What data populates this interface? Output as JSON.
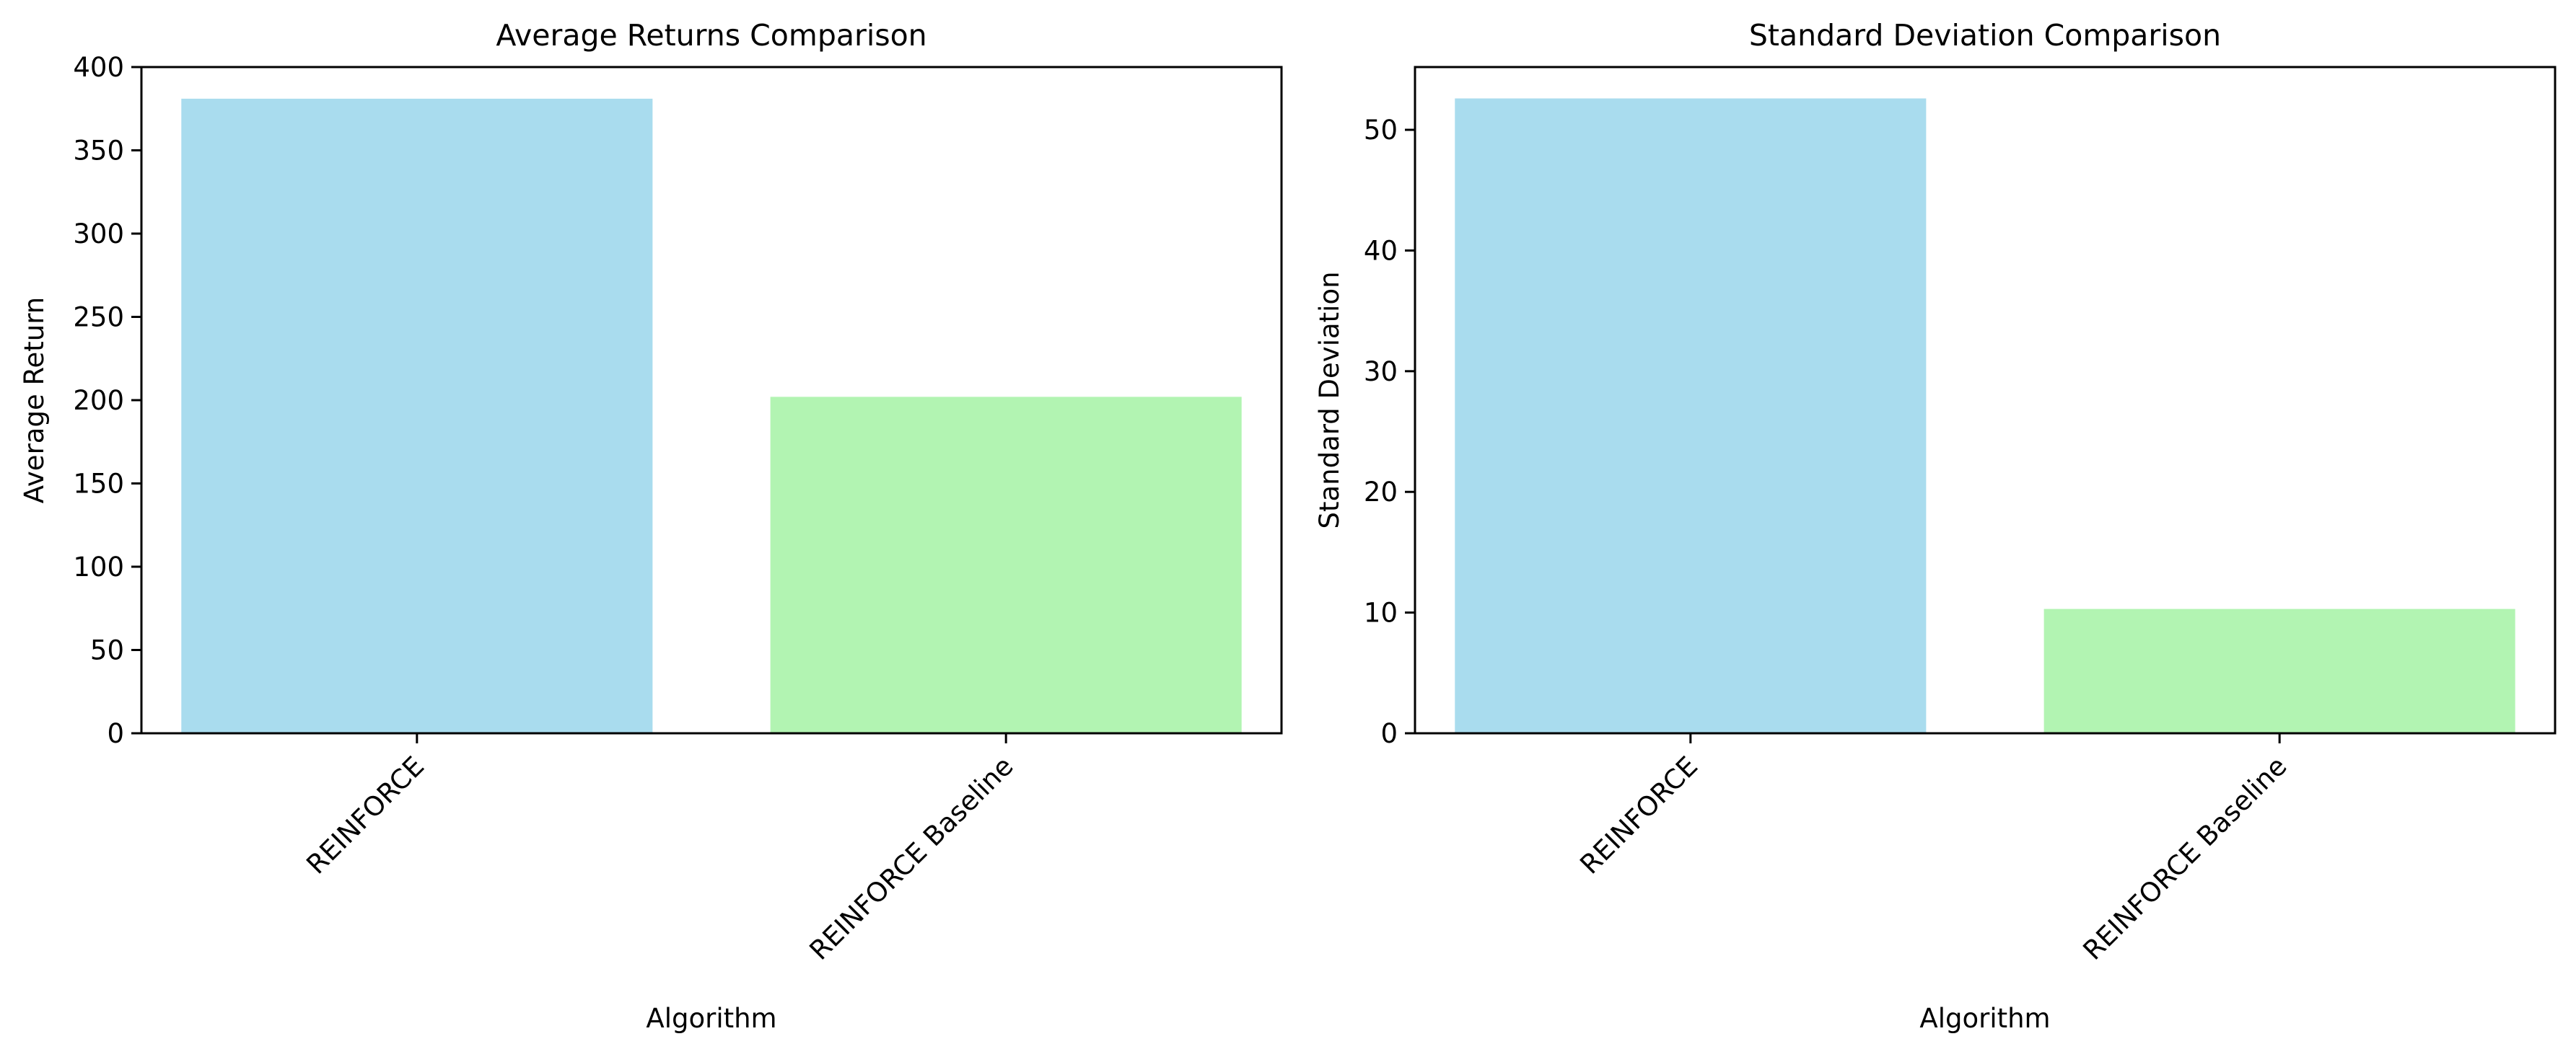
{
  "chart_data": [
    {
      "type": "bar",
      "title": "Average Returns Comparison",
      "xlabel": "Algorithm",
      "ylabel": "Average Return",
      "categories": [
        "REINFORCE",
        "REINFORCE Baseline"
      ],
      "values": [
        381,
        202
      ],
      "colors": [
        "#a9dcee",
        "#b2f4b2"
      ],
      "ylim": [
        0,
        400
      ],
      "yticks": [
        0,
        50,
        100,
        150,
        200,
        250,
        300,
        350,
        400
      ],
      "grid": false,
      "legend": "none"
    },
    {
      "type": "bar",
      "title": "Standard Deviation Comparison",
      "xlabel": "Algorithm",
      "ylabel": "Standard Deviation",
      "categories": [
        "REINFORCE",
        "REINFORCE Baseline"
      ],
      "values": [
        52.6,
        10.3
      ],
      "colors": [
        "#a9dcee",
        "#b2f4b2"
      ],
      "ylim": [
        0,
        55.2
      ],
      "yticks": [
        0,
        10,
        20,
        30,
        40,
        50
      ],
      "grid": false,
      "legend": "none"
    }
  ]
}
